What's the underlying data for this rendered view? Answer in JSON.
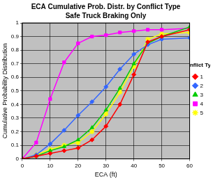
{
  "chart_data": {
    "type": "line",
    "title": "ECA Cumulative Prob. Distr. by Conflict Type",
    "subtitle": "Safe Truck Braking Only",
    "x_label": "ECA (ft)",
    "y_label": "Cumulative Probability Distribution",
    "legend_title": "Conflict Type",
    "x": [
      0,
      5,
      10,
      15,
      20,
      25,
      30,
      35,
      40,
      45,
      50,
      60
    ],
    "series": [
      {
        "name": "1",
        "color": "#ff0000",
        "marker": "diamond",
        "values": [
          0,
          0.02,
          0.04,
          0.06,
          0.08,
          0.14,
          0.24,
          0.4,
          0.62,
          0.86,
          0.9,
          0.95
        ]
      },
      {
        "name": "2",
        "color": "#3366ff",
        "marker": "diamond",
        "values": [
          0,
          0.03,
          0.11,
          0.21,
          0.32,
          0.42,
          0.53,
          0.66,
          0.77,
          0.84,
          0.88,
          0.89
        ]
      },
      {
        "name": "3",
        "color": "#00cc00",
        "marker": "triangle",
        "values": [
          0,
          0.02,
          0.06,
          0.09,
          0.14,
          0.23,
          0.36,
          0.52,
          0.7,
          0.85,
          0.9,
          0.97
        ]
      },
      {
        "name": "4",
        "color": "#ff00ff",
        "marker": "square",
        "values": [
          0,
          0.12,
          0.44,
          0.71,
          0.85,
          0.9,
          0.91,
          0.93,
          0.94,
          0.95,
          0.95,
          0.96
        ]
      },
      {
        "name": "5",
        "color": "#ffff00",
        "marker": "star",
        "values": [
          0,
          0.03,
          0.07,
          0.1,
          0.12,
          0.2,
          0.33,
          0.49,
          0.68,
          0.88,
          0.92,
          0.93
        ]
      }
    ],
    "xlim": [
      0,
      60
    ],
    "xticks": [
      0,
      10,
      20,
      30,
      40,
      50,
      60
    ],
    "ylim": [
      0,
      1
    ],
    "yticks": [
      0,
      0.1,
      0.2,
      0.3,
      0.4,
      0.5,
      0.6,
      0.7,
      0.8,
      0.9,
      1
    ],
    "grid": true,
    "legend": "right"
  }
}
